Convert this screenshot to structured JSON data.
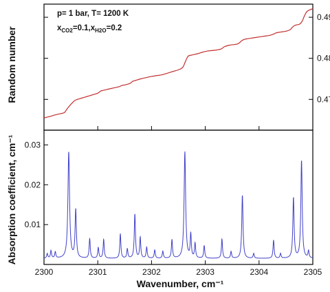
{
  "chart_data": [
    {
      "type": "line",
      "panel": "top",
      "title": "",
      "xlabel": "",
      "ylabel": "Random number",
      "xlim": [
        2300,
        2305
      ],
      "ylim": [
        0.4625,
        0.4932
      ],
      "y_ticks": [
        0.47,
        0.48,
        0.49
      ],
      "y_tick_labels": [
        "0.47",
        "0.48",
        "0.49"
      ],
      "annotation": {
        "line1": "p= 1 bar, T= 1200 K",
        "line2_parts": [
          {
            "text": "x",
            "sub": false
          },
          {
            "text": "CO2",
            "sub": true
          },
          {
            "text": "=0.1,x",
            "sub": false
          },
          {
            "text": "H2O",
            "sub": true
          },
          {
            "text": "=0.2",
            "sub": false
          }
        ]
      },
      "grid": false,
      "series": [
        {
          "color": "#c0302f",
          "x": [
            2300.0,
            2300.1,
            2300.2,
            2300.3,
            2300.38,
            2300.43,
            2300.48,
            2300.53,
            2300.57,
            2300.62,
            2300.7,
            2300.8,
            2300.9,
            2301.0,
            2301.05,
            2301.1,
            2301.2,
            2301.3,
            2301.4,
            2301.45,
            2301.5,
            2301.6,
            2301.65,
            2301.7,
            2301.8,
            2301.9,
            2302.0,
            2302.1,
            2302.2,
            2302.3,
            2302.4,
            2302.5,
            2302.58,
            2302.63,
            2302.68,
            2302.75,
            2302.85,
            2302.95,
            2303.05,
            2303.2,
            2303.3,
            2303.35,
            2303.45,
            2303.6,
            2303.67,
            2303.72,
            2303.8,
            2303.9,
            2304.0,
            2304.1,
            2304.2,
            2304.27,
            2304.32,
            2304.4,
            2304.5,
            2304.58,
            2304.63,
            2304.68,
            2304.75,
            2304.8,
            2304.85,
            2304.9,
            2305.0
          ],
          "y": [
            0.4655,
            0.4658,
            0.4662,
            0.4665,
            0.4668,
            0.4677,
            0.4685,
            0.4692,
            0.4697,
            0.47,
            0.4703,
            0.4707,
            0.4711,
            0.4715,
            0.472,
            0.4722,
            0.4725,
            0.4728,
            0.4731,
            0.4734,
            0.4735,
            0.4739,
            0.4744,
            0.4746,
            0.475,
            0.4753,
            0.4756,
            0.4758,
            0.476,
            0.4764,
            0.4768,
            0.4772,
            0.4778,
            0.4792,
            0.4805,
            0.4808,
            0.4811,
            0.4815,
            0.4818,
            0.482,
            0.4823,
            0.4828,
            0.4832,
            0.4835,
            0.4842,
            0.4846,
            0.4848,
            0.485,
            0.4852,
            0.4854,
            0.4856,
            0.4859,
            0.4862,
            0.4864,
            0.4866,
            0.487,
            0.4877,
            0.4881,
            0.4883,
            0.489,
            0.4905,
            0.4915,
            0.4921
          ]
        }
      ]
    },
    {
      "type": "line",
      "panel": "bottom",
      "title": "",
      "xlabel": "Wavenumber, cm⁻¹",
      "ylabel": "Absorption coefficient, cm⁻¹",
      "xlim": [
        2300,
        2305
      ],
      "ylim": [
        0.0,
        0.0337
      ],
      "x_ticks": [
        2300,
        2301,
        2302,
        2303,
        2304,
        2305
      ],
      "x_tick_labels": [
        "2300",
        "2301",
        "2302",
        "2303",
        "2304",
        "2305"
      ],
      "y_ticks": [
        0.01,
        0.02,
        0.03
      ],
      "y_tick_labels": [
        "0.01",
        "0.02",
        "0.03"
      ],
      "grid": false,
      "series": [
        {
          "color": "#4040c8",
          "baseline": 0.0015,
          "peaks": [
            {
              "x": 2300.06,
              "y": 0.0027,
              "w": 0.012
            },
            {
              "x": 2300.13,
              "y": 0.0034,
              "w": 0.012
            },
            {
              "x": 2300.21,
              "y": 0.0031,
              "w": 0.012
            },
            {
              "x": 2300.46,
              "y": 0.0283,
              "w": 0.018
            },
            {
              "x": 2300.59,
              "y": 0.0137,
              "w": 0.014
            },
            {
              "x": 2300.85,
              "y": 0.0065,
              "w": 0.012
            },
            {
              "x": 2301.01,
              "y": 0.0042,
              "w": 0.012
            },
            {
              "x": 2301.11,
              "y": 0.0063,
              "w": 0.012
            },
            {
              "x": 2301.42,
              "y": 0.0077,
              "w": 0.012
            },
            {
              "x": 2301.55,
              "y": 0.0039,
              "w": 0.012
            },
            {
              "x": 2301.69,
              "y": 0.0127,
              "w": 0.013
            },
            {
              "x": 2301.79,
              "y": 0.0068,
              "w": 0.012
            },
            {
              "x": 2301.91,
              "y": 0.0043,
              "w": 0.012
            },
            {
              "x": 2302.06,
              "y": 0.0036,
              "w": 0.012
            },
            {
              "x": 2302.21,
              "y": 0.0033,
              "w": 0.012
            },
            {
              "x": 2302.38,
              "y": 0.0062,
              "w": 0.012
            },
            {
              "x": 2302.62,
              "y": 0.0283,
              "w": 0.017
            },
            {
              "x": 2302.73,
              "y": 0.0075,
              "w": 0.012
            },
            {
              "x": 2302.81,
              "y": 0.0052,
              "w": 0.012
            },
            {
              "x": 2302.98,
              "y": 0.0047,
              "w": 0.012
            },
            {
              "x": 2303.31,
              "y": 0.0064,
              "w": 0.012
            },
            {
              "x": 2303.48,
              "y": 0.0032,
              "w": 0.012
            },
            {
              "x": 2303.69,
              "y": 0.0175,
              "w": 0.014
            },
            {
              "x": 2303.9,
              "y": 0.0027,
              "w": 0.012
            },
            {
              "x": 2304.27,
              "y": 0.0061,
              "w": 0.012
            },
            {
              "x": 2304.4,
              "y": 0.0027,
              "w": 0.012
            },
            {
              "x": 2304.64,
              "y": 0.0168,
              "w": 0.014
            },
            {
              "x": 2304.79,
              "y": 0.0262,
              "w": 0.015
            },
            {
              "x": 2304.92,
              "y": 0.0033,
              "w": 0.012
            }
          ]
        }
      ]
    }
  ]
}
